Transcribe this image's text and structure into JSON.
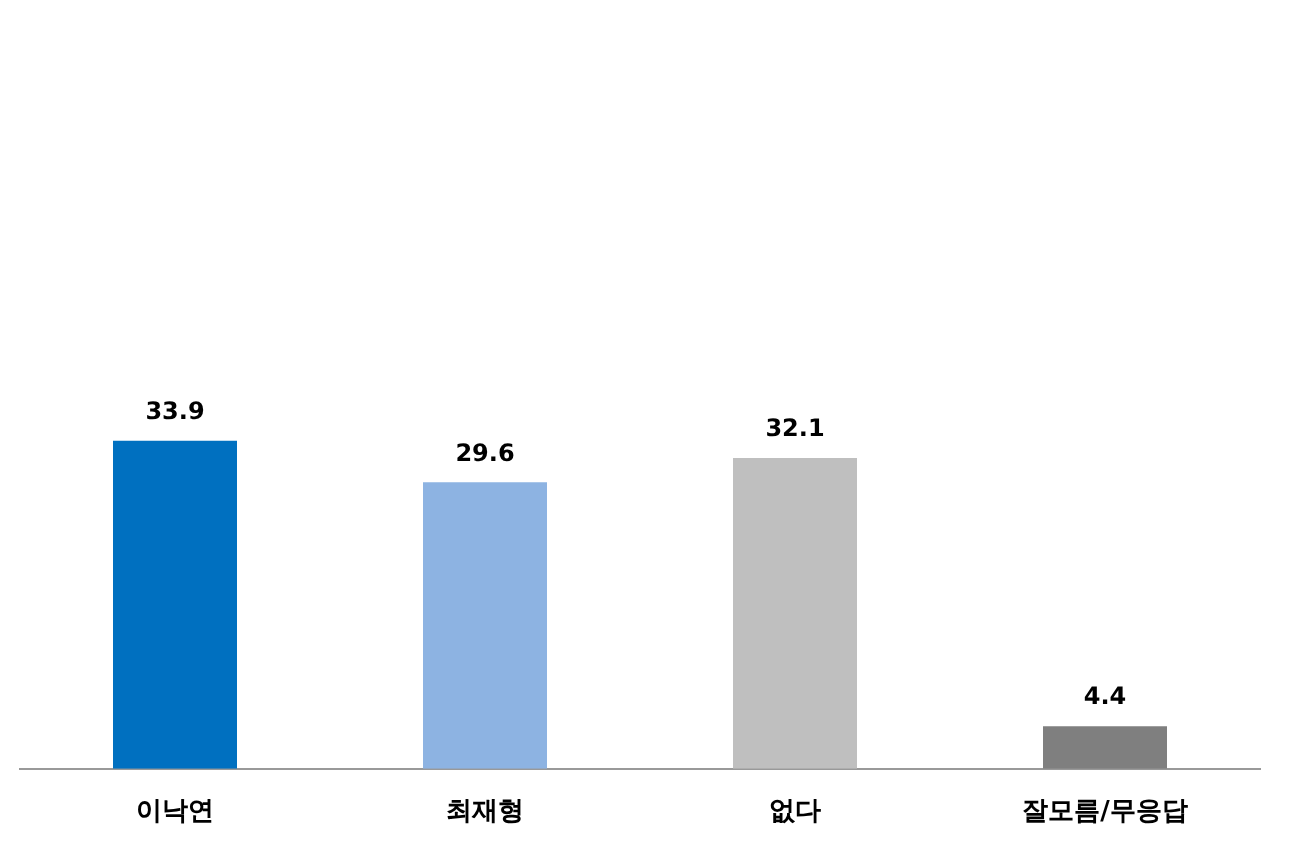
{
  "chart_data": {
    "type": "bar",
    "categories": [
      "이낙연",
      "최재형",
      "없다",
      "잘모름/무응답"
    ],
    "values": [
      33.9,
      29.6,
      32.1,
      4.4
    ],
    "colors": [
      "#0070c0",
      "#8db3e2",
      "#bfbfbf",
      "#7f7f7f"
    ],
    "data_labels": true,
    "grid": false,
    "legend": false,
    "tick_labels": "x"
  }
}
